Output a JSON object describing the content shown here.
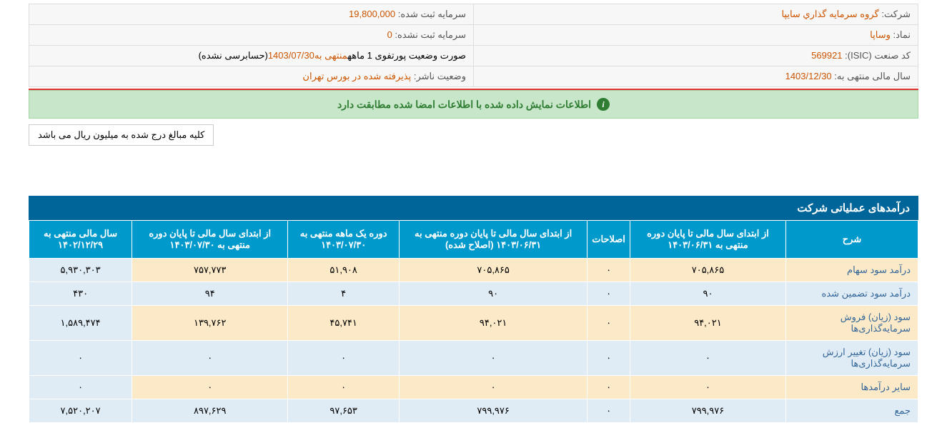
{
  "info": {
    "company_label": "شرکت:",
    "company_value": "گروه سرمايه گذاري سايپا",
    "symbol_label": "نماد:",
    "symbol_value": "وساپا",
    "isic_label": "کد صنعت (ISIC):",
    "isic_value": "569921",
    "fiscal_label": "سال مالی منتهی به:",
    "fiscal_value": "1403/12/30",
    "cap_reg_label": "سرمایه ثبت شده:",
    "cap_reg_value": "19,800,000",
    "cap_unreg_label": "سرمایه ثبت نشده:",
    "cap_unreg_value": "0",
    "report_label": "",
    "report_prefix": "صورت وضعیت پورتفوی 1 ماهه",
    "report_mid": "منتهی به",
    "report_date": "1403/07/30",
    "report_suffix": "(حسابرسی نشده)",
    "status_label": "وضعیت ناشر:",
    "status_value": "پذيرفته شده در بورس تهران"
  },
  "banner": "اطلاعات نمایش داده شده با اطلاعات امضا شده مطابقت دارد",
  "note": "کلیه مبالغ درج شده به میلیون ریال می باشد",
  "section_title": "درآمدهای عملیاتی شرکت",
  "columns": [
    "شرح",
    "از ابتدای سال مالی تا پایان دوره منتهی به ۱۴۰۳/۰۶/۳۱",
    "اصلاحات",
    "از ابتدای سال مالی تا پایان دوره منتهی به ۱۴۰۳/۰۶/۳۱ (اصلاح شده)",
    "دوره یک ماهه منتهی به ۱۴۰۳/۰۷/۳۰",
    "از ابتدای سال مالی تا پایان دوره منتهی به ۱۴۰۳/۰۷/۳۰",
    "سال مالی منتهی به ۱۴۰۲/۱۲/۲۹"
  ],
  "rows": [
    {
      "label": "درآمد سود سهام",
      "c1": "۷۰۵,۸۶۵",
      "c2": "۰",
      "c3": "۷۰۵,۸۶۵",
      "c4": "۵۱,۹۰۸",
      "c5": "۷۵۷,۷۷۳",
      "c6": "۵,۹۳۰,۳۰۳"
    },
    {
      "label": "درآمد سود تضمین شده",
      "c1": "۹۰",
      "c2": "۰",
      "c3": "۹۰",
      "c4": "۴",
      "c5": "۹۴",
      "c6": "۴۳۰"
    },
    {
      "label": "سود (زیان) فروش سرمایه‌گذاری‌ها",
      "c1": "۹۴,۰۲۱",
      "c2": "۰",
      "c3": "۹۴,۰۲۱",
      "c4": "۴۵,۷۴۱",
      "c5": "۱۳۹,۷۶۲",
      "c6": "۱,۵۸۹,۴۷۴"
    },
    {
      "label": "سود (زیان) تغییر ارزش سرمایه‌گذاری‌ها",
      "c1": "۰",
      "c2": "۰",
      "c3": "۰",
      "c4": "۰",
      "c5": "۰",
      "c6": "۰"
    },
    {
      "label": "سایر درآمدها",
      "c1": "۰",
      "c2": "۰",
      "c3": "۰",
      "c4": "۰",
      "c5": "۰",
      "c6": "۰"
    },
    {
      "label": "جمع",
      "c1": "۷۹۹,۹۷۶",
      "c2": "۰",
      "c3": "۷۹۹,۹۷۶",
      "c4": "۹۷,۶۵۳",
      "c5": "۸۹۷,۶۲۹",
      "c6": "۷,۵۲۰,۲۰۷"
    }
  ],
  "styles": {
    "header_bg": "#0099cc",
    "section_bg": "#006699",
    "odd_bg": "#fce9c7",
    "even_bg": "#e0ecf5",
    "banner_bg": "#c8e6c9",
    "value_color": "#cc5500"
  }
}
